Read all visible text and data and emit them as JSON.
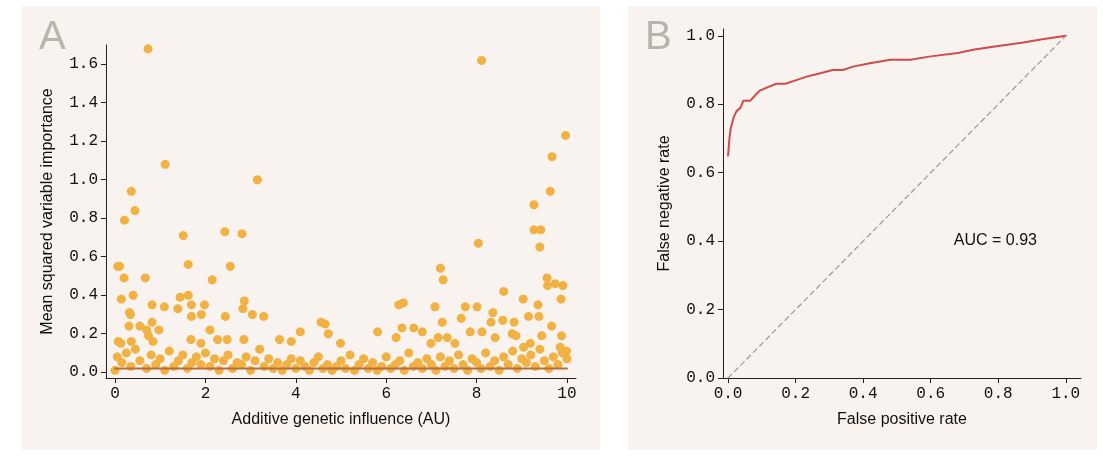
{
  "chart_data": [
    {
      "type": "scatter",
      "title": "A",
      "xlabel": "Additive genetic influence (AU)",
      "ylabel": "Mean squared variable importance",
      "xlim": [
        -0.2,
        10.2
      ],
      "xticks": [
        0,
        2,
        4,
        6,
        8,
        10
      ],
      "ylim": [
        -0.03,
        1.7
      ],
      "yticks": [
        {
          "value": 0,
          "label": "0.0"
        },
        {
          "value": 0.2,
          "label": "0.2"
        },
        {
          "value": 0.4,
          "label": "0.4"
        },
        {
          "value": 0.6,
          "label": "0.6"
        },
        {
          "value": 0.8,
          "label": "0.8"
        },
        {
          "value": 1.0,
          "label": "1.0"
        },
        {
          "value": 1.2,
          "label": "1.2"
        },
        {
          "value": 1.4,
          "label": "1.4"
        },
        {
          "value": 1.6,
          "label": "1.6"
        }
      ],
      "grid": false,
      "marker": "circle",
      "series": [
        {
          "color": "#f2b143",
          "x": [
            0.73,
            8.11,
            9.97,
            9.67,
            1.11,
            3.15,
            0.36,
            9.63,
            0.44,
            0.21,
            9.27,
            9.27,
            9.42,
            2.43,
            2.81,
            1.51,
            9.4,
            8.04,
            0.1,
            0.06,
            1.62,
            2.55,
            7.2,
            7.26,
            0.2,
            0.67,
            2.15,
            9.56,
            9.91,
            9.57,
            9.74,
            0.14,
            0.4,
            1.44,
            1.62,
            9.87,
            9.03,
            8.6,
            9.36,
            6.28,
            6.38,
            7.08,
            7.75,
            8.01,
            2.86,
            2.83,
            0.82,
            1.09,
            1.98,
            1.39,
            1.69,
            3.04,
            3.29,
            2.44,
            1.69,
            1.91,
            0.32,
            0.34,
            9.38,
            9.15,
            7.66,
            8.32,
            8.58,
            8.83,
            7.24,
            4.56,
            4.65,
            0.82,
            9.66,
            0.31,
            0.55,
            2.1,
            8.12,
            6.35,
            6.61,
            6.8,
            4.1,
            5.81,
            4.72,
            7.86,
            0.07,
            0.13,
            0.36,
            0.7,
            0.74,
            0.84,
            0.97,
            1.68,
            1.9,
            2.27,
            2.48,
            2.85,
            3.64,
            3.9,
            7.15,
            7.35,
            8.41,
            8.87,
            8.36,
            8.79,
            9.44,
            9.88,
            6.22,
            4.99,
            6.99,
            7.52,
            9.04,
            9.19,
            9.99,
            9.85,
            0.0,
            0.05,
            0.15,
            0.25,
            0.35,
            0.45,
            0.55,
            0.7,
            0.8,
            0.9,
            1.0,
            1.1,
            1.2,
            1.3,
            1.4,
            1.5,
            1.6,
            1.7,
            1.8,
            1.9,
            2.0,
            2.1,
            2.2,
            2.3,
            2.4,
            2.5,
            2.6,
            2.7,
            2.8,
            2.9,
            3.0,
            3.1,
            3.2,
            3.3,
            3.4,
            3.5,
            3.6,
            3.7,
            3.8,
            3.9,
            4.0,
            4.1,
            4.2,
            4.3,
            4.4,
            4.5,
            4.6,
            4.7,
            4.8,
            4.9,
            5.0,
            5.1,
            5.2,
            5.3,
            5.4,
            5.5,
            5.6,
            5.7,
            5.8,
            5.9,
            6.0,
            6.1,
            6.2,
            6.3,
            6.4,
            6.5,
            6.6,
            6.7,
            6.8,
            6.9,
            7.0,
            7.1,
            7.2,
            7.3,
            7.4,
            7.5,
            7.6,
            7.7,
            7.8,
            7.9,
            8.0,
            8.1,
            8.2,
            8.3,
            8.4,
            8.5,
            8.6,
            8.7,
            8.8,
            8.9,
            9.0,
            9.1,
            9.2,
            9.3,
            9.4,
            9.5,
            9.6,
            9.7,
            9.8,
            9.9,
            10.0
          ],
          "values": [
            1.68,
            1.62,
            1.23,
            1.12,
            1.08,
            1.0,
            0.94,
            0.94,
            0.84,
            0.79,
            0.87,
            0.74,
            0.74,
            0.73,
            0.72,
            0.71,
            0.65,
            0.67,
            0.55,
            0.55,
            0.56,
            0.55,
            0.54,
            0.48,
            0.49,
            0.49,
            0.48,
            0.49,
            0.45,
            0.45,
            0.46,
            0.38,
            0.4,
            0.39,
            0.4,
            0.38,
            0.38,
            0.42,
            0.35,
            0.35,
            0.36,
            0.34,
            0.34,
            0.34,
            0.37,
            0.33,
            0.35,
            0.34,
            0.35,
            0.33,
            0.35,
            0.3,
            0.29,
            0.29,
            0.29,
            0.3,
            0.31,
            0.3,
            0.29,
            0.29,
            0.28,
            0.26,
            0.27,
            0.26,
            0.26,
            0.26,
            0.25,
            0.26,
            0.24,
            0.24,
            0.24,
            0.22,
            0.21,
            0.23,
            0.23,
            0.21,
            0.21,
            0.21,
            0.2,
            0.21,
            0.16,
            0.15,
            0.16,
            0.22,
            0.19,
            0.16,
            0.22,
            0.17,
            0.15,
            0.17,
            0.17,
            0.17,
            0.17,
            0.16,
            0.18,
            0.18,
            0.18,
            0.19,
            0.31,
            0.2,
            0.19,
            0.19,
            0.18,
            0.15,
            0.15,
            0.15,
            0.13,
            0.15,
            0.11,
            0.13,
            0.01,
            0.08,
            0.05,
            0.1,
            0.03,
            0.12,
            0.06,
            0.02,
            0.09,
            0.04,
            0.07,
            0.01,
            0.11,
            0.03,
            0.06,
            0.09,
            0.02,
            0.05,
            0.08,
            0.04,
            0.1,
            0.03,
            0.07,
            0.01,
            0.06,
            0.09,
            0.02,
            0.05,
            0.04,
            0.08,
            0.01,
            0.06,
            0.12,
            0.03,
            0.07,
            0.02,
            0.05,
            0.01,
            0.04,
            0.07,
            0.02,
            0.06,
            0.03,
            0.01,
            0.05,
            0.08,
            0.02,
            0.04,
            0.01,
            0.03,
            0.06,
            0.02,
            0.09,
            0.01,
            0.04,
            0.07,
            0.02,
            0.05,
            0.01,
            0.03,
            0.08,
            0.02,
            0.04,
            0.06,
            0.01,
            0.1,
            0.03,
            0.05,
            0.02,
            0.07,
            0.04,
            0.01,
            0.08,
            0.03,
            0.06,
            0.02,
            0.09,
            0.04,
            0.01,
            0.07,
            0.05,
            0.02,
            0.1,
            0.03,
            0.06,
            0.01,
            0.08,
            0.04,
            0.11,
            0.02,
            0.07,
            0.05,
            0.09,
            0.03,
            0.12,
            0.06,
            0.02,
            0.08,
            0.04,
            0.1,
            0.07
          ]
        },
        {
          "type": "line",
          "color": "#b36f3c",
          "marker": "none",
          "x": [
            0,
            10
          ],
          "values": [
            0.02,
            0.02
          ]
        }
      ]
    },
    {
      "type": "line",
      "title": "B",
      "xlabel": "False positive rate",
      "ylabel": "False negative rate",
      "annotations": [
        "AUC = 0.93"
      ],
      "xlim": [
        -0.015,
        1.045
      ],
      "xticks": [
        {
          "value": 0,
          "label": "0.0"
        },
        {
          "value": 0.2,
          "label": "0.2"
        },
        {
          "value": 0.4,
          "label": "0.4"
        },
        {
          "value": 0.6,
          "label": "0.6"
        },
        {
          "value": 0.8,
          "label": "0.8"
        },
        {
          "value": 1.0,
          "label": "1.0"
        }
      ],
      "ylim": [
        0,
        1.02
      ],
      "yticks": [
        {
          "value": 0,
          "label": "0.0"
        },
        {
          "value": 0.2,
          "label": "0.2"
        },
        {
          "value": 0.4,
          "label": "0.4"
        },
        {
          "value": 0.6,
          "label": "0.6"
        },
        {
          "value": 0.8,
          "label": "0.8"
        },
        {
          "value": 1.0,
          "label": "1.0"
        }
      ],
      "grid": false,
      "marker": "none",
      "series": [
        {
          "color": "#d24b4b",
          "line_style": "solid",
          "x": [
            0,
            0.004,
            0.008,
            0.016,
            0.025,
            0.037,
            0.045,
            0.065,
            0.084,
            0.094,
            0.118,
            0.143,
            0.17,
            0.2,
            0.23,
            0.27,
            0.31,
            0.34,
            0.37,
            0.42,
            0.48,
            0.54,
            0.6,
            0.68,
            0.73,
            0.8,
            0.87,
            0.93,
            1.0
          ],
          "values": [
            0.65,
            0.7,
            0.73,
            0.76,
            0.78,
            0.79,
            0.81,
            0.81,
            0.83,
            0.84,
            0.85,
            0.86,
            0.86,
            0.87,
            0.88,
            0.89,
            0.9,
            0.9,
            0.91,
            0.92,
            0.93,
            0.93,
            0.94,
            0.95,
            0.96,
            0.97,
            0.98,
            0.99,
            1.0
          ]
        },
        {
          "color": "#999999",
          "line_style": "dashed",
          "x": [
            0,
            1
          ],
          "values": [
            0,
            1
          ]
        }
      ]
    }
  ]
}
